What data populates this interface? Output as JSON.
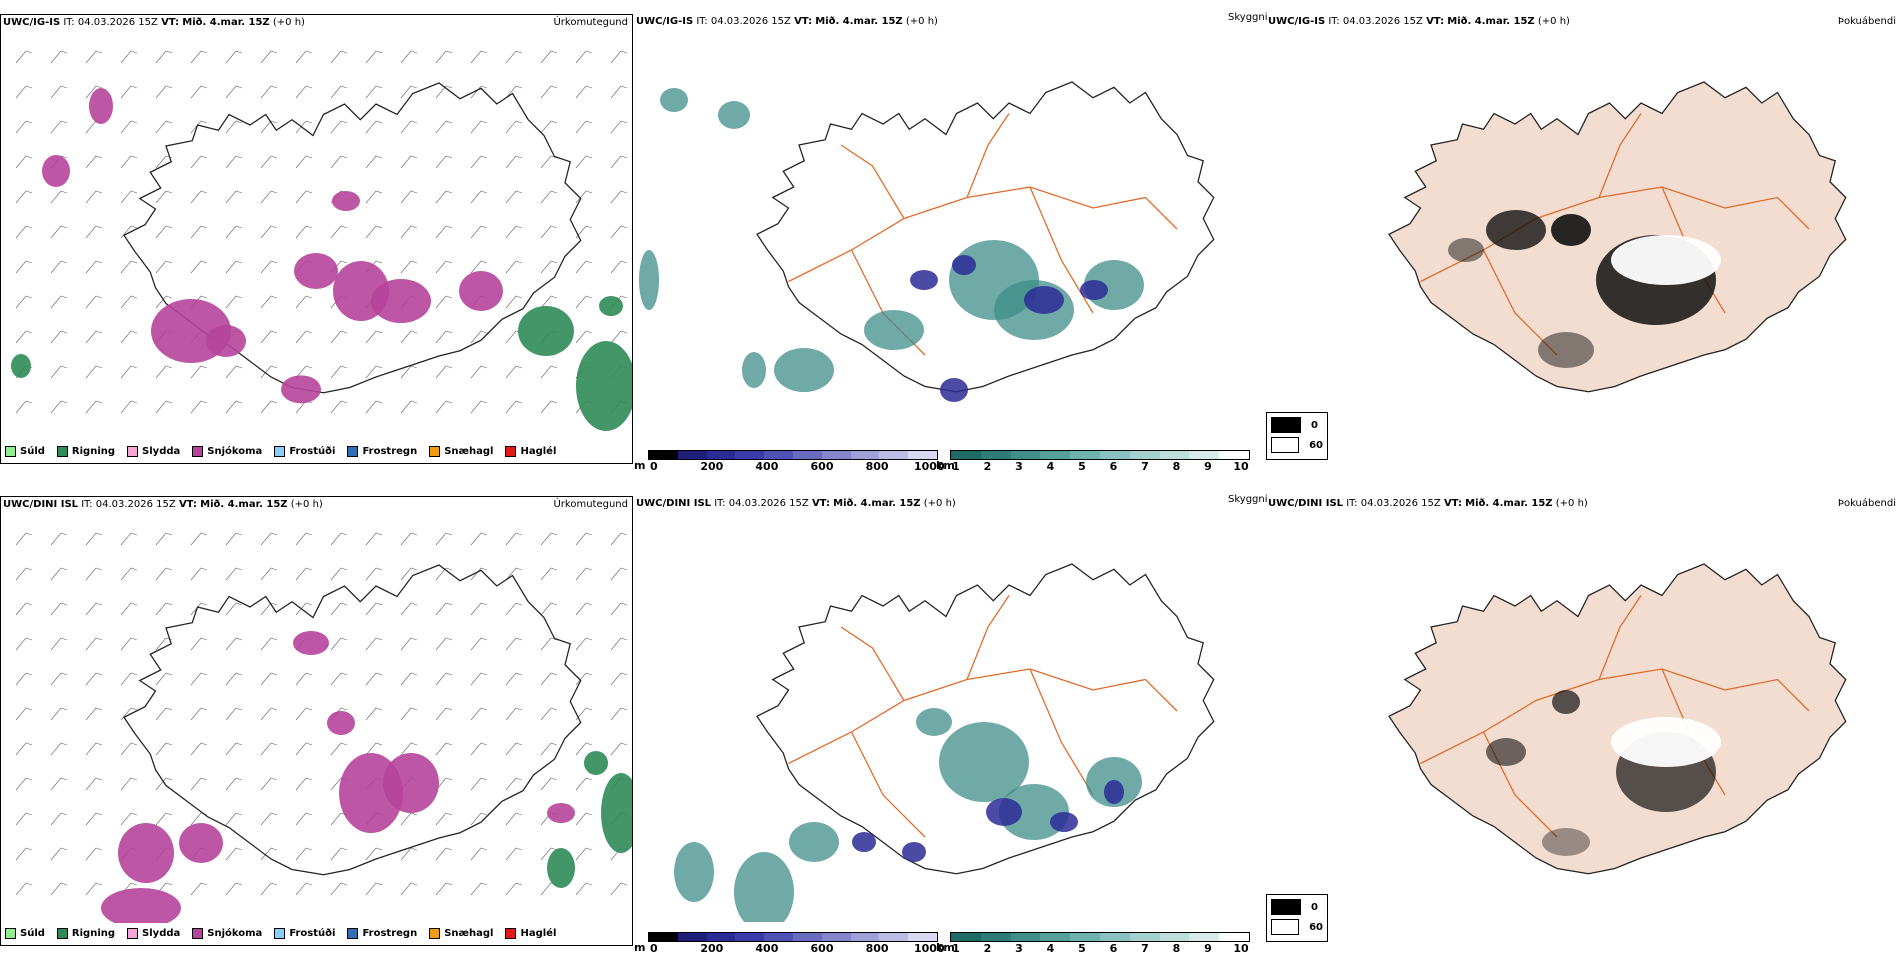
{
  "rows": [
    {
      "model": "UWC/IG-IS",
      "it_label": "IT:",
      "it_value": "04.03.2026 15Z",
      "vt_label": "VT:",
      "vt_value": "Mið. 4.mar. 15Z",
      "lead": "(+0 h)"
    },
    {
      "model": "UWC/DINI ISL",
      "it_label": "IT:",
      "it_value": "04.03.2026 15Z",
      "vt_label": "VT:",
      "vt_value": "Mið. 4.mar. 15Z",
      "lead": "(+0 h)"
    }
  ],
  "panel_titles": {
    "precip_type": "Úrkomutegund",
    "clouds": "Skyggni",
    "fog": "Þokuábendi"
  },
  "precip_legend": [
    {
      "label": "Súld",
      "color": "#90ee90"
    },
    {
      "label": "Rigning",
      "color": "#2e8b57"
    },
    {
      "label": "Slydda",
      "color": "#f4a6d7"
    },
    {
      "label": "Snjókoma",
      "color": "#b5449b"
    },
    {
      "label": "Frostúði",
      "color": "#87cefa"
    },
    {
      "label": "Frostregn",
      "color": "#2f6fb5"
    },
    {
      "label": "Snæhagl",
      "color": "#f39c12"
    },
    {
      "label": "Haglél",
      "color": "#e31a1c"
    }
  ],
  "ceiling_bar": {
    "unit": "m",
    "ticks": [
      "0",
      "200",
      "400",
      "600",
      "800",
      "1000"
    ],
    "colors": [
      "#000000",
      "#1f1f7a",
      "#2b2b96",
      "#3a3aa8",
      "#5050b5",
      "#6a6ac0",
      "#8585cc",
      "#a0a0d8",
      "#bcbce4",
      "#d8d8f0"
    ]
  },
  "visibility_bar": {
    "unit": "km",
    "ticks": [
      "1",
      "2",
      "3",
      "4",
      "5",
      "6",
      "7",
      "8",
      "9",
      "10"
    ],
    "colors": [
      "#1f6b66",
      "#2e7d78",
      "#3f8e89",
      "#55a09b",
      "#6fb2ad",
      "#89c2be",
      "#a3d1cd",
      "#bddfdc",
      "#d6ebe9",
      "#ffffff"
    ]
  },
  "fog_legend": [
    {
      "label": "0",
      "color": "#000000"
    },
    {
      "label": "60",
      "color": "#ffffff"
    }
  ],
  "map_colors": {
    "land_fog": "#f3ddd0",
    "roads": "#e06a2a",
    "snow": "#b5449b",
    "rain": "#2e8b57",
    "teal": "#3f8e89",
    "navy": "#2b2b96"
  }
}
